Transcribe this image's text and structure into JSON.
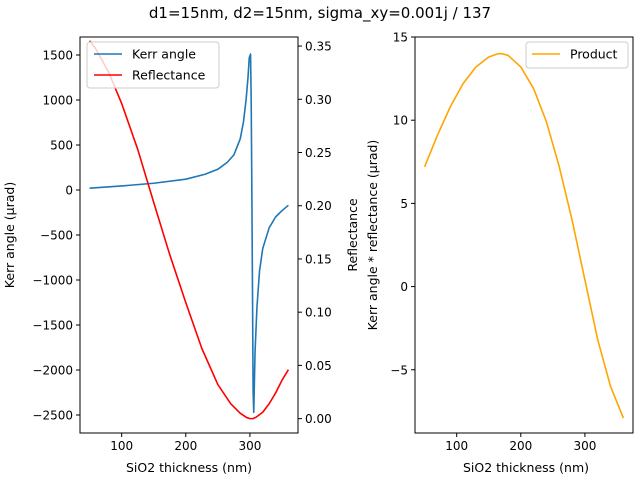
{
  "figure": {
    "title": "d1=15nm, d2=15nm, sigma_xy=0.001j / 137"
  },
  "chart_data": [
    {
      "type": "line",
      "xlabel": "SiO2 thickness (nm)",
      "ylabel": "Kerr angle (µrad)",
      "y2label": "Reflectance",
      "xlim": [
        35,
        375
      ],
      "ylim": [
        -2700,
        1700
      ],
      "y2lim": [
        -0.0135,
        0.3585
      ],
      "xticks": [
        "100",
        "200",
        "300"
      ],
      "yticks": [
        "1500",
        "1000",
        "500",
        "0",
        "−500",
        "−1000",
        "−1500",
        "−2000",
        "−2500"
      ],
      "y2ticks": [
        "0.35",
        "0.30",
        "0.25",
        "0.20",
        "0.15",
        "0.10",
        "0.05",
        "0.00"
      ],
      "legend": "top-left",
      "series": [
        {
          "name": "Kerr angle",
          "axis": "left",
          "color": "#1f77b4",
          "x": [
            50,
            100,
            150,
            200,
            230,
            250,
            265,
            275,
            285,
            290,
            294,
            297,
            299,
            300,
            301,
            302,
            303,
            304,
            305,
            306,
            308,
            311,
            315,
            320,
            330,
            340,
            350,
            360
          ],
          "y": [
            20,
            45,
            75,
            120,
            175,
            230,
            310,
            390,
            570,
            760,
            1000,
            1250,
            1470,
            1490,
            1510,
            1000,
            0,
            -1100,
            -2250,
            -2470,
            -1800,
            -1300,
            -900,
            -650,
            -420,
            -300,
            -230,
            -170
          ]
        },
        {
          "name": "Reflectance",
          "axis": "right",
          "color": "#ff0000",
          "x": [
            50,
            60,
            80,
            100,
            125,
            150,
            175,
            200,
            225,
            250,
            270,
            285,
            295,
            300,
            305,
            310,
            320,
            330,
            340,
            350,
            360
          ],
          "y": [
            0.355,
            0.347,
            0.325,
            0.296,
            0.253,
            0.203,
            0.154,
            0.109,
            0.066,
            0.032,
            0.014,
            0.005,
            0.001,
            0.0,
            0.0,
            0.0015,
            0.006,
            0.014,
            0.024,
            0.036,
            0.046
          ]
        }
      ]
    },
    {
      "type": "line",
      "xlabel": "SiO2 thickness (nm)",
      "ylabel": "Kerr angle * reflectance (µrad)",
      "xlim": [
        35,
        375
      ],
      "ylim": [
        -8.8,
        15
      ],
      "xticks": [
        "100",
        "200",
        "300"
      ],
      "yticks": [
        "15",
        "10",
        "5",
        "0",
        "−5"
      ],
      "legend": "top-right",
      "series": [
        {
          "name": "Product",
          "color": "#ffa500",
          "x": [
            50,
            70,
            90,
            110,
            130,
            150,
            165,
            170,
            180,
            200,
            220,
            240,
            260,
            280,
            300,
            320,
            340,
            360
          ],
          "y": [
            7.2,
            9.1,
            10.8,
            12.2,
            13.2,
            13.8,
            14.0,
            14.0,
            13.9,
            13.2,
            11.9,
            9.9,
            7.2,
            4.0,
            0.4,
            -3.2,
            -6.0,
            -7.9
          ]
        }
      ]
    }
  ]
}
